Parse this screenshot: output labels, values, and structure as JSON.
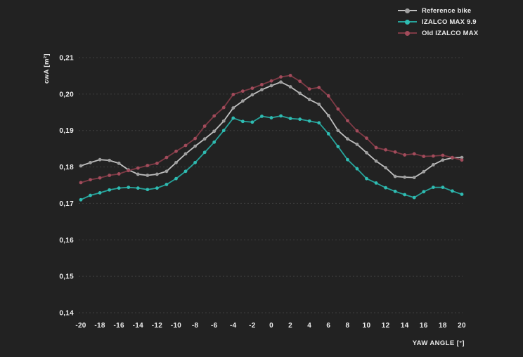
{
  "colors": {
    "background": "#222222",
    "grid": "#3e3e3e",
    "tick_text": "#efefef"
  },
  "legend": {
    "items": [
      {
        "label": "Reference bike",
        "line_color": "#c0c0c0",
        "marker_color": "#9f9f9f"
      },
      {
        "label": "IZALCO MAX 9.9",
        "line_color": "#27a39b",
        "marker_color": "#2fbcb2"
      },
      {
        "label": "Old IZALCO MAX",
        "line_color": "#7e3a45",
        "marker_color": "#a24b5b"
      }
    ]
  },
  "chart_data": {
    "type": "line",
    "title": "",
    "xlabel": "YAW ANGLE [°]",
    "ylabel": "cwA [m²]",
    "xlim": [
      -20,
      20
    ],
    "ylim": [
      0.14,
      0.21
    ],
    "grid": "horizontal-dashed",
    "legend_position": "top-right",
    "x": [
      -20,
      -19,
      -18,
      -17,
      -16,
      -15,
      -14,
      -13,
      -12,
      -11,
      -10,
      -9,
      -8,
      -7,
      -6,
      -5,
      -4,
      -3,
      -2,
      -1,
      0,
      1,
      2,
      3,
      4,
      5,
      6,
      7,
      8,
      9,
      10,
      11,
      12,
      13,
      14,
      15,
      16,
      17,
      18,
      19,
      20
    ],
    "series": [
      {
        "name": "Reference bike",
        "line_color": "#c0c0c0",
        "marker_color": "#9f9f9f",
        "values": [
          0.1803,
          0.1812,
          0.182,
          0.1818,
          0.181,
          0.1792,
          0.178,
          0.1777,
          0.178,
          0.1788,
          0.1812,
          0.1836,
          0.1857,
          0.1877,
          0.1898,
          0.1926,
          0.1962,
          0.1981,
          0.1998,
          0.2012,
          0.2023,
          0.2033,
          0.202,
          0.2002,
          0.1985,
          0.1972,
          0.1941,
          0.19,
          0.1877,
          0.1862,
          0.1839,
          0.1816,
          0.1798,
          0.1774,
          0.1772,
          0.1771,
          0.1787,
          0.1806,
          0.1819,
          0.1825,
          0.1826
        ]
      },
      {
        "name": "IZALCO MAX 9.9",
        "line_color": "#27a39b",
        "marker_color": "#2fbcb2",
        "values": [
          0.171,
          0.1722,
          0.1729,
          0.1737,
          0.1742,
          0.1744,
          0.1742,
          0.1738,
          0.1742,
          0.1752,
          0.1768,
          0.1788,
          0.1812,
          0.184,
          0.1868,
          0.19,
          0.1934,
          0.1925,
          0.1923,
          0.1939,
          0.1935,
          0.194,
          0.1933,
          0.1931,
          0.1926,
          0.1921,
          0.1891,
          0.1856,
          0.182,
          0.1795,
          0.1768,
          0.1756,
          0.1743,
          0.1733,
          0.1724,
          0.1716,
          0.1732,
          0.1744,
          0.1744,
          0.1734,
          0.1725
        ]
      },
      {
        "name": "Old IZALCO MAX",
        "line_color": "#7e3a45",
        "marker_color": "#a24b5b",
        "values": [
          0.1757,
          0.1765,
          0.177,
          0.1777,
          0.1781,
          0.179,
          0.1797,
          0.1804,
          0.181,
          0.1826,
          0.1843,
          0.1859,
          0.1878,
          0.1912,
          0.194,
          0.1963,
          0.1999,
          0.2008,
          0.2016,
          0.2026,
          0.2036,
          0.2047,
          0.2051,
          0.2035,
          0.2014,
          0.2018,
          0.1995,
          0.1959,
          0.1927,
          0.1899,
          0.1879,
          0.1853,
          0.1847,
          0.1841,
          0.1833,
          0.1836,
          0.1829,
          0.183,
          0.1832,
          0.1826,
          0.1819
        ]
      }
    ],
    "yticks": [
      {
        "value": 0.21,
        "label": "0,21"
      },
      {
        "value": 0.2,
        "label": "0,20"
      },
      {
        "value": 0.19,
        "label": "0,19"
      },
      {
        "value": 0.18,
        "label": "0,18"
      },
      {
        "value": 0.17,
        "label": "0,17"
      },
      {
        "value": 0.16,
        "label": "0,16"
      },
      {
        "value": 0.15,
        "label": "0,15"
      },
      {
        "value": 0.14,
        "label": "0,14"
      }
    ],
    "xticks": [
      {
        "value": -20,
        "label": "-20"
      },
      {
        "value": -18,
        "label": "-18"
      },
      {
        "value": -16,
        "label": "-16"
      },
      {
        "value": -14,
        "label": "-14"
      },
      {
        "value": -12,
        "label": "-12"
      },
      {
        "value": -10,
        "label": "-10"
      },
      {
        "value": -8,
        "label": "-8"
      },
      {
        "value": -6,
        "label": "-6"
      },
      {
        "value": -4,
        "label": "-4"
      },
      {
        "value": -2,
        "label": "-2"
      },
      {
        "value": 0,
        "label": "0"
      },
      {
        "value": 2,
        "label": "2"
      },
      {
        "value": 4,
        "label": "4"
      },
      {
        "value": 6,
        "label": "6"
      },
      {
        "value": 8,
        "label": "8"
      },
      {
        "value": 10,
        "label": "10"
      },
      {
        "value": 12,
        "label": "12"
      },
      {
        "value": 14,
        "label": "14"
      },
      {
        "value": 16,
        "label": "16"
      },
      {
        "value": 18,
        "label": "18"
      },
      {
        "value": 20,
        "label": "20"
      }
    ]
  }
}
